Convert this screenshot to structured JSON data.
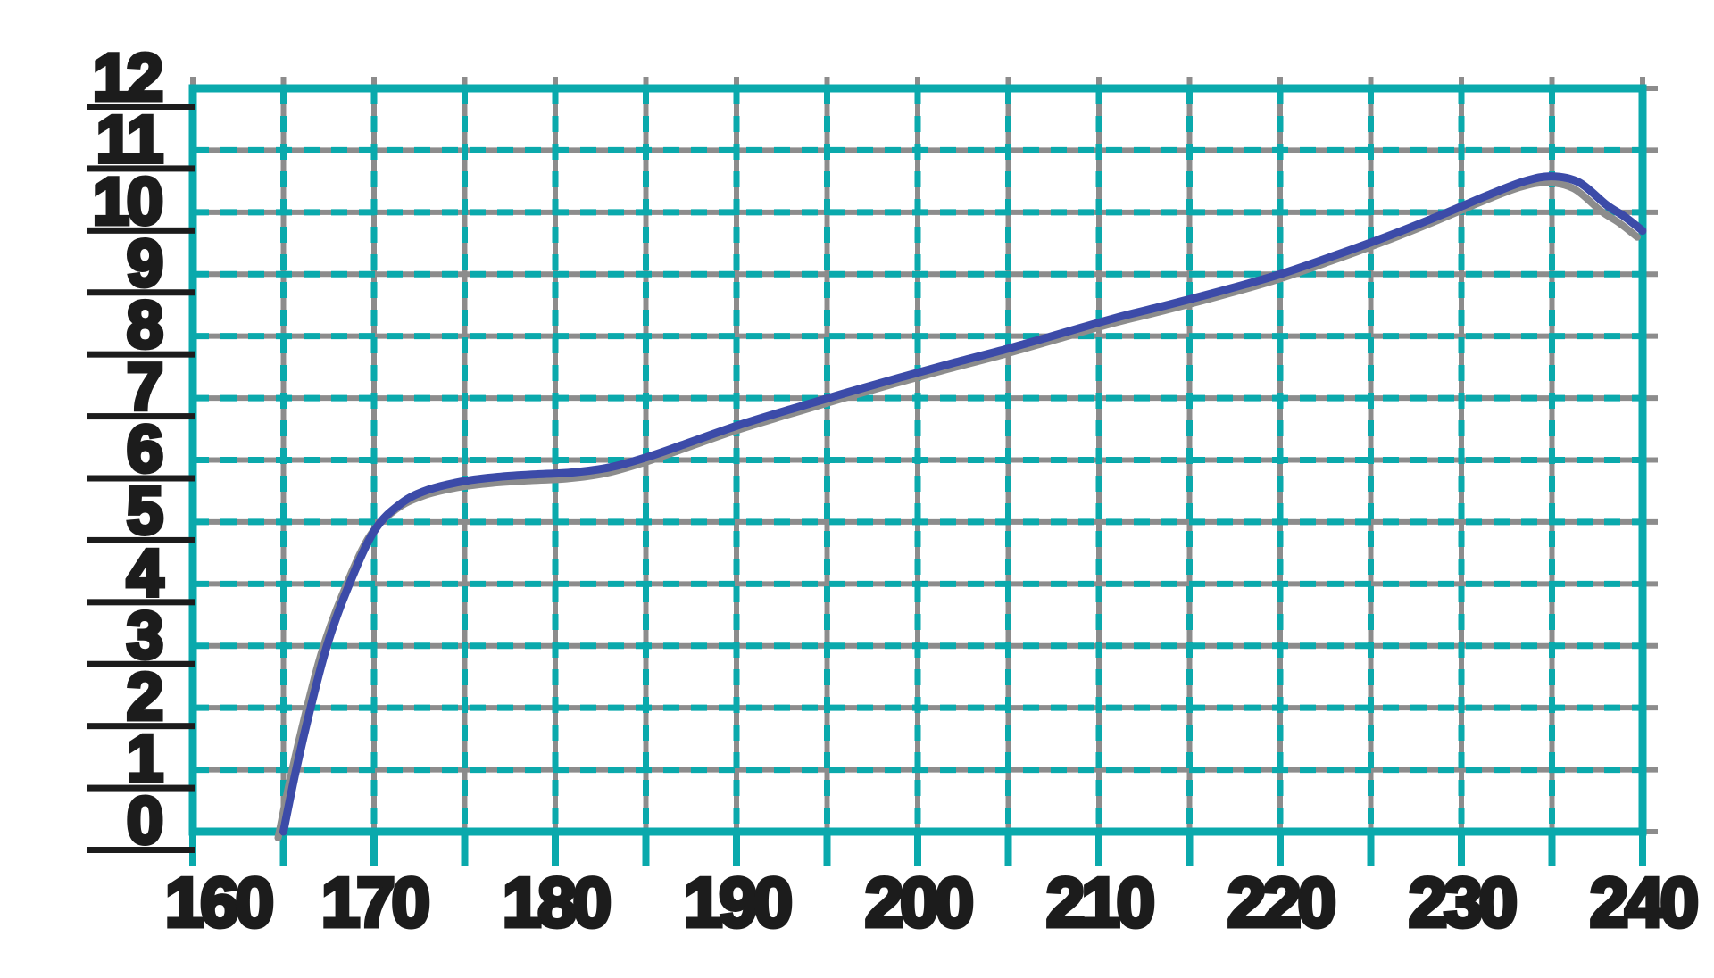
{
  "chart_data": {
    "type": "line",
    "title": "",
    "subtitle": "",
    "xlabel": "",
    "ylabel": "",
    "legend": "none",
    "xlim": [
      160,
      240
    ],
    "ylim": [
      0,
      12
    ],
    "x_label_step": 10,
    "x_gridline_step": 5,
    "y_label_step": 1,
    "y_gridline_step": 1,
    "x_tick_labels": [
      "160",
      "170",
      "180",
      "190",
      "200",
      "210",
      "220",
      "230",
      "240"
    ],
    "y_tick_labels": [
      "0",
      "1",
      "2",
      "3",
      "4",
      "5",
      "6",
      "7",
      "8",
      "9",
      "10",
      "11",
      "12"
    ],
    "grid_style": "interior lines dashed teal over solid gray; solid teal border; teal ticks below bottom edge; gray lines overhang border",
    "series": [
      {
        "name": "curve",
        "color": "#3c4ba8",
        "points": [
          [
            165.0,
            0.0
          ],
          [
            165.7,
            1.0
          ],
          [
            166.5,
            2.0
          ],
          [
            167.4,
            3.0
          ],
          [
            168.5,
            3.9
          ],
          [
            170.0,
            4.85
          ],
          [
            171.5,
            5.3
          ],
          [
            173.0,
            5.52
          ],
          [
            175.0,
            5.66
          ],
          [
            177.0,
            5.73
          ],
          [
            179.0,
            5.77
          ],
          [
            181.0,
            5.8
          ],
          [
            183.0,
            5.88
          ],
          [
            185.0,
            6.04
          ],
          [
            187.0,
            6.24
          ],
          [
            190.0,
            6.55
          ],
          [
            193.0,
            6.82
          ],
          [
            196.0,
            7.08
          ],
          [
            199.0,
            7.33
          ],
          [
            202.0,
            7.57
          ],
          [
            205.0,
            7.8
          ],
          [
            208.0,
            8.05
          ],
          [
            211.0,
            8.3
          ],
          [
            214.0,
            8.52
          ],
          [
            217.0,
            8.75
          ],
          [
            220.0,
            9.0
          ],
          [
            223.0,
            9.3
          ],
          [
            226.0,
            9.62
          ],
          [
            229.0,
            9.97
          ],
          [
            231.5,
            10.28
          ],
          [
            233.5,
            10.5
          ],
          [
            235.0,
            10.58
          ],
          [
            236.5,
            10.48
          ],
          [
            238.0,
            10.12
          ],
          [
            239.0,
            9.93
          ],
          [
            240.0,
            9.7
          ]
        ]
      }
    ]
  },
  "colors": {
    "teal": "#0aa9ac",
    "gray": "#8c8c8c",
    "curve_blue": "#3c4ba8",
    "text_black": "#1c1c1c",
    "background": "#ffffff"
  }
}
